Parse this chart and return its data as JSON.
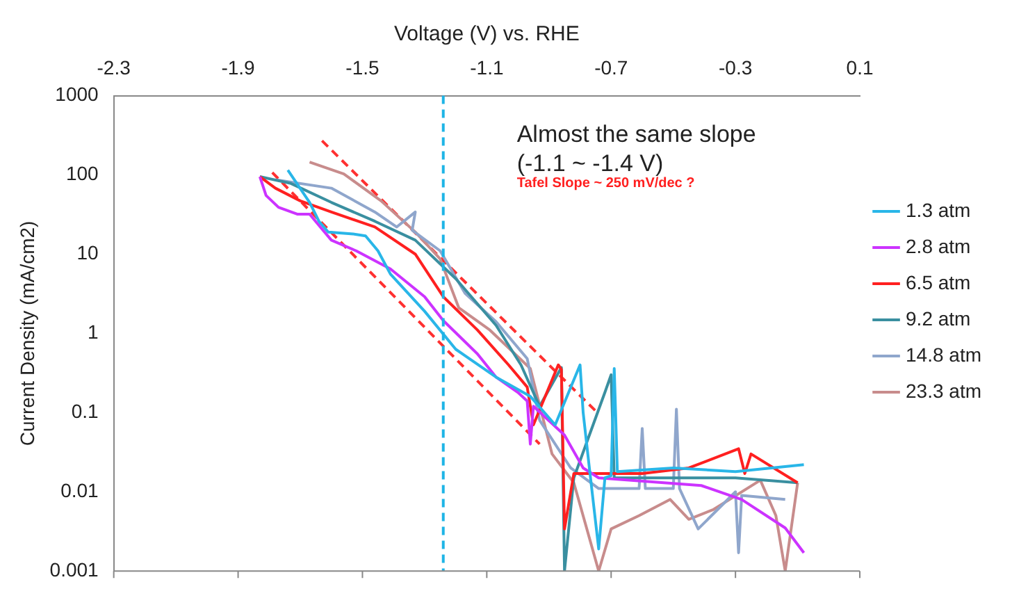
{
  "chart_data": {
    "type": "line",
    "xlabel": "Voltage (V) vs. RHE",
    "ylabel": "Current Density (mA/cm2)",
    "xlim": [
      -2.3,
      0.1
    ],
    "xticks": [
      -2.3,
      -1.9,
      -1.5,
      -1.1,
      -0.7,
      -0.3,
      0.1
    ],
    "ylim": [
      0.001,
      1000
    ],
    "yticks": [
      0.001,
      0.01,
      0.1,
      1,
      10,
      100,
      1000
    ],
    "log": "y",
    "grid": false,
    "legend": "right",
    "marker": "none",
    "annotations": [
      "Almost the same slope",
      "(-1.1 ~ -1.4 V)",
      "Tafel Slope ~ 250 mV/dec ?"
    ],
    "ref_lines": [
      {
        "axis": "x",
        "value": -1.24,
        "color": "#1eb4e6",
        "line_style": "dashed"
      }
    ],
    "series": [
      {
        "name": "1.3 atm",
        "color": "#29b6e8",
        "x": [
          -1.74,
          -1.67,
          -1.64,
          -1.61,
          -1.53,
          -1.49,
          -1.45,
          -1.41,
          -1.3,
          -1.2,
          -1.07,
          -0.96,
          -0.88,
          -0.8,
          -0.79,
          -0.77,
          -0.74,
          -0.72,
          -0.7,
          -0.69,
          -0.68,
          -0.5,
          -0.3,
          -0.08
        ],
        "values": [
          115,
          45,
          26,
          19,
          18,
          17,
          11,
          5.6,
          1.9,
          0.63,
          0.28,
          0.16,
          0.07,
          0.4,
          0.1,
          0.02,
          0.0019,
          0.015,
          0.016,
          0.36,
          0.018,
          0.02,
          0.018,
          0.022
        ]
      },
      {
        "name": "2.8 atm",
        "color": "#cc33ff",
        "x": [
          -1.83,
          -1.81,
          -1.77,
          -1.71,
          -1.67,
          -1.6,
          -1.52,
          -1.41,
          -1.3,
          -1.24,
          -1.13,
          -1.07,
          -1.0,
          -0.97,
          -0.96,
          -0.95,
          -0.85,
          -0.79,
          -0.74,
          -0.41,
          -0.28,
          -0.14,
          -0.08
        ],
        "values": [
          95,
          55,
          39,
          32,
          32,
          15,
          11,
          6.5,
          2.9,
          1.45,
          0.55,
          0.28,
          0.18,
          0.14,
          0.04,
          0.12,
          0.052,
          0.02,
          0.015,
          0.012,
          0.008,
          0.0035,
          0.0017
        ]
      },
      {
        "name": "6.5 atm",
        "color": "#ff2020",
        "x": [
          -1.83,
          -1.78,
          -1.7,
          -1.6,
          -1.46,
          -1.33,
          -1.24,
          -1.13,
          -1.03,
          -0.97,
          -0.95,
          -0.87,
          -0.86,
          -0.85,
          -0.82,
          -0.6,
          -0.45,
          -0.29,
          -0.27,
          -0.25,
          -0.1
        ],
        "values": [
          95,
          68,
          47,
          34,
          22,
          10,
          2.9,
          1.1,
          0.4,
          0.21,
          0.07,
          0.4,
          0.35,
          0.0034,
          0.017,
          0.017,
          0.02,
          0.035,
          0.017,
          0.03,
          0.013
        ]
      },
      {
        "name": "9.2 atm",
        "color": "#3a8fa0",
        "x": [
          -1.83,
          -1.73,
          -1.6,
          -1.46,
          -1.33,
          -1.2,
          -1.07,
          -0.99,
          -0.93,
          -0.86,
          -0.85,
          -0.82,
          -0.72,
          -0.7,
          -0.69,
          -0.5,
          -0.3,
          -0.1
        ],
        "values": [
          95,
          78,
          45,
          26,
          15,
          4.9,
          1.26,
          0.4,
          0.12,
          0.37,
          0.001,
          0.015,
          0.18,
          0.3,
          0.015,
          0.015,
          0.015,
          0.013
        ]
      },
      {
        "name": "14.8 atm",
        "color": "#8fa6cc",
        "x": [
          -1.78,
          -1.6,
          -1.46,
          -1.39,
          -1.33,
          -1.34,
          -1.25,
          -1.17,
          -1.07,
          -0.97,
          -0.93,
          -0.83,
          -0.74,
          -0.61,
          -0.6,
          -0.59,
          -0.5,
          -0.49,
          -0.48,
          -0.42,
          -0.3,
          -0.29,
          -0.28,
          -0.14
        ],
        "values": [
          87,
          68,
          34,
          22,
          34,
          20,
          11,
          3.2,
          1.4,
          0.48,
          0.08,
          0.02,
          0.011,
          0.011,
          0.063,
          0.011,
          0.011,
          0.11,
          0.011,
          0.0034,
          0.01,
          0.0017,
          0.009,
          0.008
        ]
      },
      {
        "name": "23.3 atm",
        "color": "#c88c8c",
        "x": [
          -1.67,
          -1.56,
          -1.44,
          -1.33,
          -1.25,
          -1.19,
          -1.09,
          -0.96,
          -0.89,
          -0.82,
          -0.74,
          -0.7,
          -0.61,
          -0.51,
          -0.45,
          -0.37,
          -0.22,
          -0.17,
          -0.14,
          -0.1
        ],
        "values": [
          145,
          103,
          47,
          19,
          8.7,
          2.1,
          1.1,
          0.36,
          0.03,
          0.013,
          0.001,
          0.0034,
          0.005,
          0.008,
          0.0045,
          0.006,
          0.014,
          0.005,
          0.001,
          0.013
        ]
      },
      {
        "color": "#ff3030",
        "line_style": "dashed",
        "x": [
          -1.63,
          -0.75
        ],
        "values": [
          270,
          0.105
        ]
      },
      {
        "color": "#ff3030",
        "line_style": "dashed",
        "x": [
          -1.79,
          -0.93
        ],
        "values": [
          107,
          0.04
        ]
      }
    ]
  }
}
